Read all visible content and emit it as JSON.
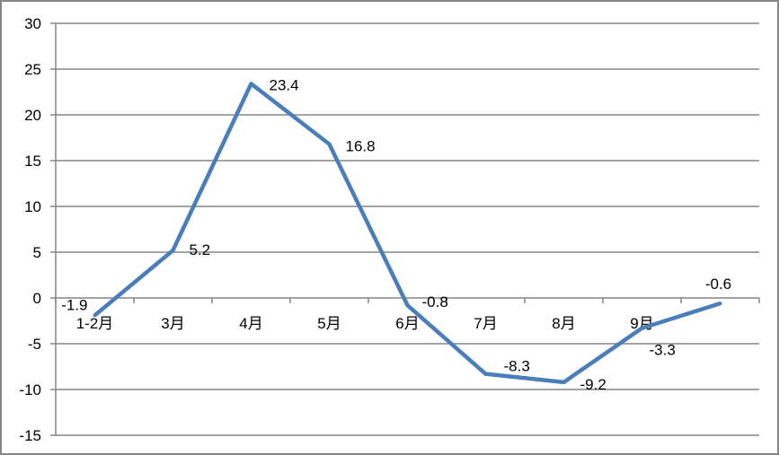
{
  "chart_data": {
    "type": "line",
    "title": "",
    "xlabel": "",
    "ylabel": "",
    "categories": [
      "1-2月",
      "3月",
      "4月",
      "5月",
      "6月",
      "7月",
      "8月",
      "9月",
      ""
    ],
    "values": [
      -1.9,
      5.2,
      23.4,
      16.8,
      -0.8,
      -8.3,
      -9.2,
      -3.3,
      -0.6
    ],
    "data_labels": [
      "-1.9",
      "5.2",
      "23.4",
      "16.8",
      "-0.8",
      "-8.3",
      "-9.2",
      "-3.3",
      "-0.6"
    ],
    "ylim": [
      -15,
      30
    ],
    "yticks": [
      30,
      25,
      20,
      15,
      10,
      5,
      0,
      -5,
      -10,
      -15
    ],
    "grid": true,
    "legend": "none",
    "colors": {
      "line": "#4a7ebb",
      "grid": "#868686"
    }
  }
}
